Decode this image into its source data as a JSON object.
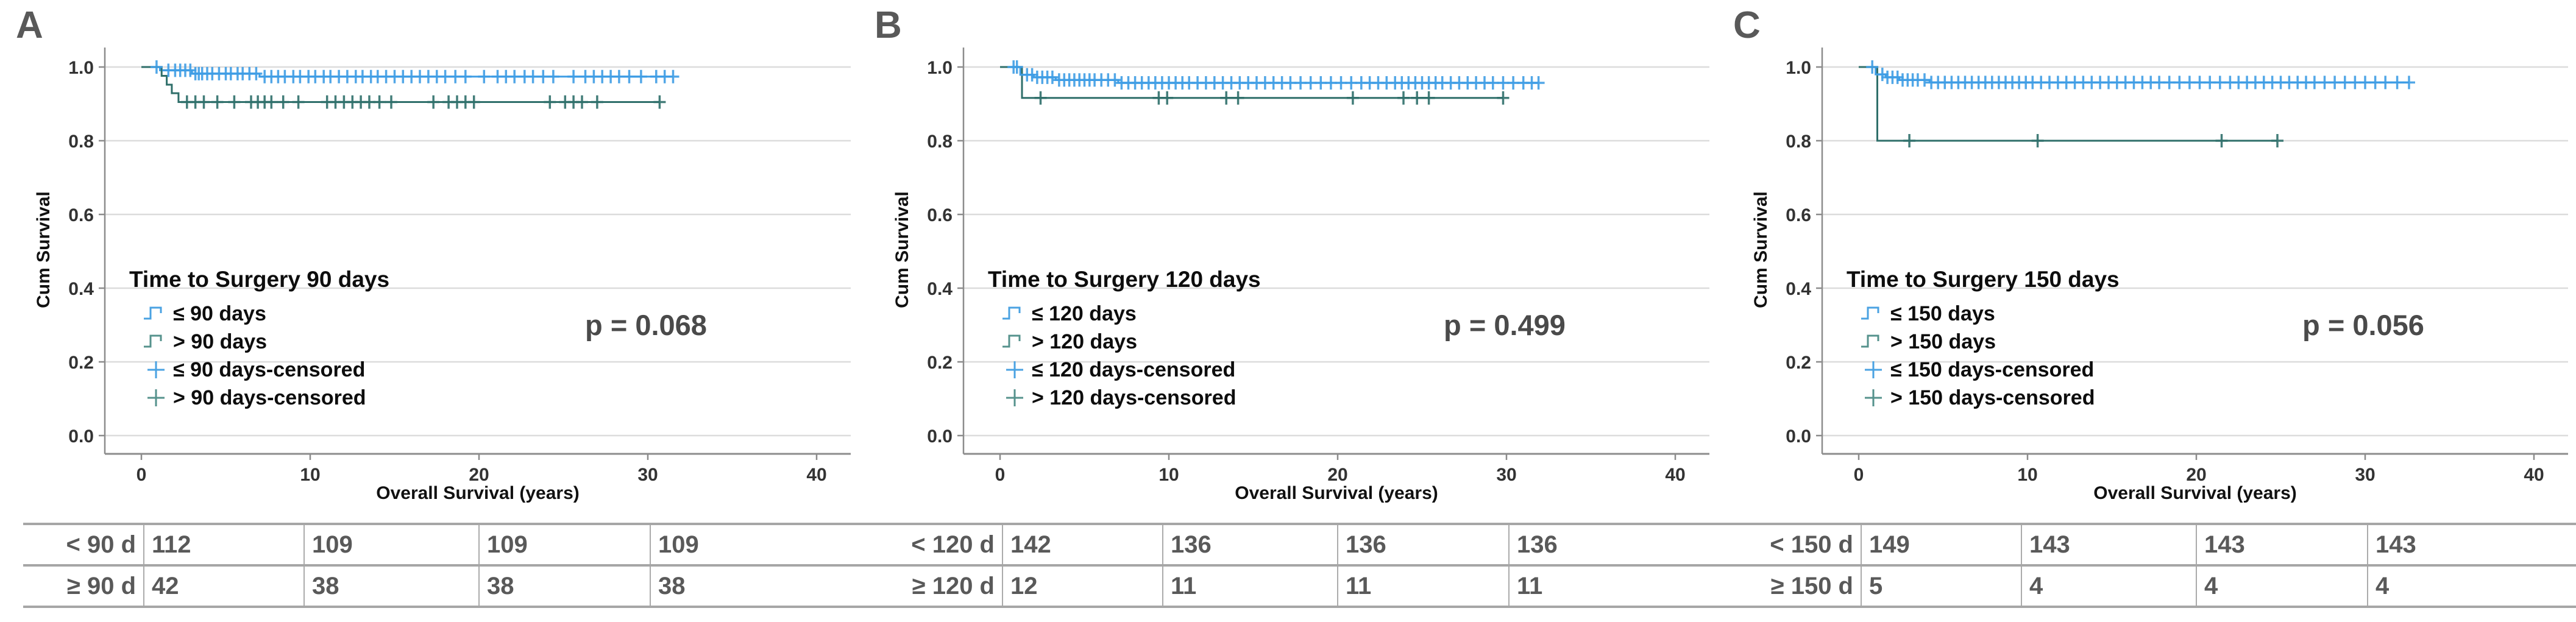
{
  "figure_bg": "#ffffff",
  "shared": {
    "xlabel": "Overall Survival (years)",
    "ylabel": "Cum Survival",
    "axis_color": "#8c8c8c",
    "grid_color": "#dcdcdc",
    "tick_label_color": "#333333"
  },
  "panels": [
    {
      "letter": "A",
      "p_value": "p = 0.068",
      "legend": {
        "title": "Time to Surgery 90 days",
        "items": [
          {
            "label": "≤ 90 days",
            "symbol": "step",
            "color": "#4aa2e2"
          },
          {
            "label": "> 90 days",
            "symbol": "step",
            "color": "#55928c"
          },
          {
            "label": "≤ 90 days-censored",
            "symbol": "plus",
            "color": "#4aa2e2"
          },
          {
            "label": "> 90 days-censored",
            "symbol": "plus",
            "color": "#55928c"
          }
        ]
      },
      "chart_data": {
        "type": "line",
        "subtype": "kaplan-meier-step",
        "xlabel": "Overall Survival (years)",
        "ylabel": "Cum Survival",
        "xlim": [
          0,
          42
        ],
        "ylim": [
          0,
          1.05
        ],
        "x_ticks": [
          0,
          10,
          20,
          30,
          40
        ],
        "y_ticks": [
          0.0,
          0.2,
          0.4,
          0.6,
          0.8,
          1.0
        ],
        "grid": true,
        "series": [
          {
            "name": "≤ 90 days",
            "color": "#3f9de4",
            "steps": [
              [
                0,
                1.0
              ],
              [
                1.1,
                1.0
              ],
              [
                1.1,
                0.991
              ],
              [
                3.0,
                0.991
              ],
              [
                3.0,
                0.982
              ],
              [
                7.0,
                0.982
              ],
              [
                7.0,
                0.974
              ],
              [
                31.5,
                0.974
              ]
            ],
            "censors": [
              0.9,
              1.6,
              2.0,
              2.3,
              2.6,
              2.9,
              3.2,
              3.4,
              3.6,
              3.9,
              4.2,
              4.6,
              5.0,
              5.3,
              5.7,
              6.0,
              6.4,
              6.8,
              7.3,
              7.7,
              8.1,
              8.5,
              9.0,
              9.4,
              9.9,
              10.3,
              10.8,
              11.2,
              11.7,
              12.2,
              12.7,
              13.1,
              13.6,
              14.0,
              14.5,
              15.0,
              15.5,
              16.0,
              16.5,
              17.0,
              17.5,
              18.0,
              18.6,
              19.2,
              20.3,
              21.1,
              21.6,
              22.1,
              22.7,
              23.2,
              23.8,
              24.4,
              25.6,
              26.3,
              26.8,
              27.3,
              27.8,
              28.3,
              28.9,
              29.6,
              30.5,
              31.0,
              31.5
            ]
          },
          {
            "name": "> 90 days",
            "color": "#2f6f6a",
            "steps": [
              [
                0,
                1.0
              ],
              [
                1.2,
                1.0
              ],
              [
                1.2,
                0.976
              ],
              [
                1.5,
                0.976
              ],
              [
                1.5,
                0.952
              ],
              [
                1.8,
                0.952
              ],
              [
                1.8,
                0.929
              ],
              [
                2.2,
                0.929
              ],
              [
                2.2,
                0.905
              ],
              [
                30.7,
                0.905
              ]
            ],
            "censors": [
              2.7,
              3.2,
              3.7,
              4.5,
              5.5,
              6.5,
              6.9,
              7.3,
              7.7,
              8.4,
              9.3,
              11.0,
              11.5,
              12.0,
              12.5,
              13.0,
              13.5,
              14.1,
              14.8,
              17.3,
              18.2,
              18.7,
              19.2,
              19.7,
              24.2,
              25.1,
              25.6,
              26.1,
              27.0,
              30.7
            ]
          }
        ]
      },
      "table": {
        "rows": [
          {
            "label": "< 90 d",
            "cells": [
              "112",
              "109",
              "109",
              "109"
            ]
          },
          {
            "label": "≥ 90 d",
            "cells": [
              "42",
              "38",
              "38",
              "38"
            ]
          }
        ]
      }
    },
    {
      "letter": "B",
      "p_value": "p = 0.499",
      "legend": {
        "title": "Time to Surgery 120 days",
        "items": [
          {
            "label": "≤ 120 days",
            "symbol": "step",
            "color": "#4aa2e2"
          },
          {
            "label": "> 120 days",
            "symbol": "step",
            "color": "#55928c"
          },
          {
            "label": "≤ 120 days-censored",
            "symbol": "plus",
            "color": "#4aa2e2"
          },
          {
            "label": "> 120 days-censored",
            "symbol": "plus",
            "color": "#55928c"
          }
        ]
      },
      "chart_data": {
        "type": "line",
        "subtype": "kaplan-meier-step",
        "xlabel": "Overall Survival (years)",
        "ylabel": "Cum Survival",
        "xlim": [
          0,
          42
        ],
        "ylim": [
          0,
          1.05
        ],
        "x_ticks": [
          0,
          10,
          20,
          30,
          40
        ],
        "y_ticks": [
          0.0,
          0.2,
          0.4,
          0.6,
          0.8,
          1.0
        ],
        "grid": true,
        "series": [
          {
            "name": "≤ 120 days",
            "color": "#3f9de4",
            "steps": [
              [
                0,
                1.0
              ],
              [
                1.2,
                1.0
              ],
              [
                1.2,
                0.979
              ],
              [
                2.0,
                0.979
              ],
              [
                2.0,
                0.972
              ],
              [
                3.3,
                0.972
              ],
              [
                3.3,
                0.965
              ],
              [
                7.0,
                0.965
              ],
              [
                7.0,
                0.957
              ],
              [
                31.9,
                0.957
              ]
            ],
            "censors": [
              0.8,
              1.0,
              1.6,
              1.9,
              2.2,
              2.5,
              2.8,
              3.1,
              3.5,
              3.8,
              4.1,
              4.4,
              4.7,
              5.0,
              5.3,
              5.6,
              6.0,
              6.4,
              6.8,
              7.2,
              7.6,
              8.0,
              8.4,
              8.8,
              9.2,
              9.6,
              10.0,
              10.4,
              10.8,
              11.2,
              11.7,
              12.2,
              12.7,
              13.2,
              13.7,
              14.2,
              14.7,
              15.2,
              15.7,
              16.2,
              16.7,
              17.2,
              17.8,
              18.4,
              19.0,
              19.6,
              20.2,
              20.8,
              21.4,
              21.9,
              22.4,
              22.9,
              23.4,
              23.8,
              24.2,
              24.6,
              25.0,
              25.4,
              25.8,
              26.2,
              26.7,
              27.2,
              27.7,
              28.2,
              28.7,
              29.2,
              29.8,
              30.4,
              31.0,
              31.5,
              31.9
            ]
          },
          {
            "name": "> 120 days",
            "color": "#2f6f6a",
            "steps": [
              [
                0,
                1.0
              ],
              [
                1.3,
                1.0
              ],
              [
                1.3,
                0.916
              ],
              [
                29.8,
                0.916
              ]
            ],
            "censors": [
              2.4,
              9.4,
              9.9,
              13.4,
              14.1,
              20.9,
              23.9,
              24.7,
              25.4,
              29.8
            ]
          }
        ]
      },
      "table": {
        "rows": [
          {
            "label": "< 120 d",
            "cells": [
              "142",
              "136",
              "136",
              "136"
            ]
          },
          {
            "label": "≥ 120 d",
            "cells": [
              "12",
              "11",
              "11",
              "11"
            ]
          }
        ]
      }
    },
    {
      "letter": "C",
      "p_value": "p = 0.056",
      "legend": {
        "title": "Time to Surgery 150 days",
        "items": [
          {
            "label": "≤ 150 days",
            "symbol": "step",
            "color": "#4aa2e2"
          },
          {
            "label": "> 150 days",
            "symbol": "step",
            "color": "#55928c"
          },
          {
            "label": "≤ 150 days-censored",
            "symbol": "plus",
            "color": "#4aa2e2"
          },
          {
            "label": "> 150 days-censored",
            "symbol": "plus",
            "color": "#55928c"
          }
        ]
      },
      "chart_data": {
        "type": "line",
        "subtype": "kaplan-meier-step",
        "xlabel": "Overall Survival (years)",
        "ylabel": "Cum Survival",
        "xlim": [
          0,
          42
        ],
        "ylim": [
          0,
          1.05
        ],
        "x_ticks": [
          0,
          10,
          20,
          30,
          40
        ],
        "y_ticks": [
          0.0,
          0.2,
          0.4,
          0.6,
          0.8,
          1.0
        ],
        "grid": true,
        "series": [
          {
            "name": "≤ 150 days",
            "color": "#3f9de4",
            "steps": [
              [
                0,
                1.0
              ],
              [
                1.0,
                1.0
              ],
              [
                1.0,
                0.98
              ],
              [
                1.6,
                0.98
              ],
              [
                1.6,
                0.972
              ],
              [
                2.4,
                0.972
              ],
              [
                2.4,
                0.965
              ],
              [
                4.2,
                0.965
              ],
              [
                4.2,
                0.958
              ],
              [
                32.6,
                0.958
              ]
            ],
            "censors": [
              0.8,
              1.4,
              1.7,
              2.0,
              2.3,
              2.6,
              2.9,
              3.2,
              3.5,
              3.9,
              4.3,
              4.7,
              5.1,
              5.5,
              5.9,
              6.3,
              6.7,
              7.1,
              7.5,
              7.9,
              8.3,
              8.7,
              9.1,
              9.5,
              9.9,
              10.3,
              10.8,
              11.3,
              11.8,
              12.3,
              12.8,
              13.3,
              13.8,
              14.3,
              14.8,
              15.3,
              15.8,
              16.3,
              16.8,
              17.3,
              17.8,
              18.4,
              19.0,
              19.6,
              20.2,
              20.8,
              21.4,
              22.0,
              22.5,
              23.0,
              23.5,
              24.0,
              24.5,
              25.0,
              25.5,
              26.0,
              26.5,
              27.0,
              27.6,
              28.2,
              28.8,
              29.4,
              30.0,
              30.6,
              31.2,
              31.9,
              32.6
            ]
          },
          {
            "name": "> 150 days",
            "color": "#2f6f6a",
            "steps": [
              [
                0,
                1.0
              ],
              [
                1.1,
                1.0
              ],
              [
                1.1,
                0.8
              ],
              [
                24.8,
                0.8
              ]
            ],
            "censors": [
              3.0,
              10.6,
              21.5,
              24.8
            ]
          }
        ]
      },
      "table": {
        "rows": [
          {
            "label": "< 150 d",
            "cells": [
              "149",
              "143",
              "143",
              "143"
            ]
          },
          {
            "label": "≥ 150 d",
            "cells": [
              "5",
              "4",
              "4",
              "4"
            ]
          }
        ]
      }
    }
  ]
}
